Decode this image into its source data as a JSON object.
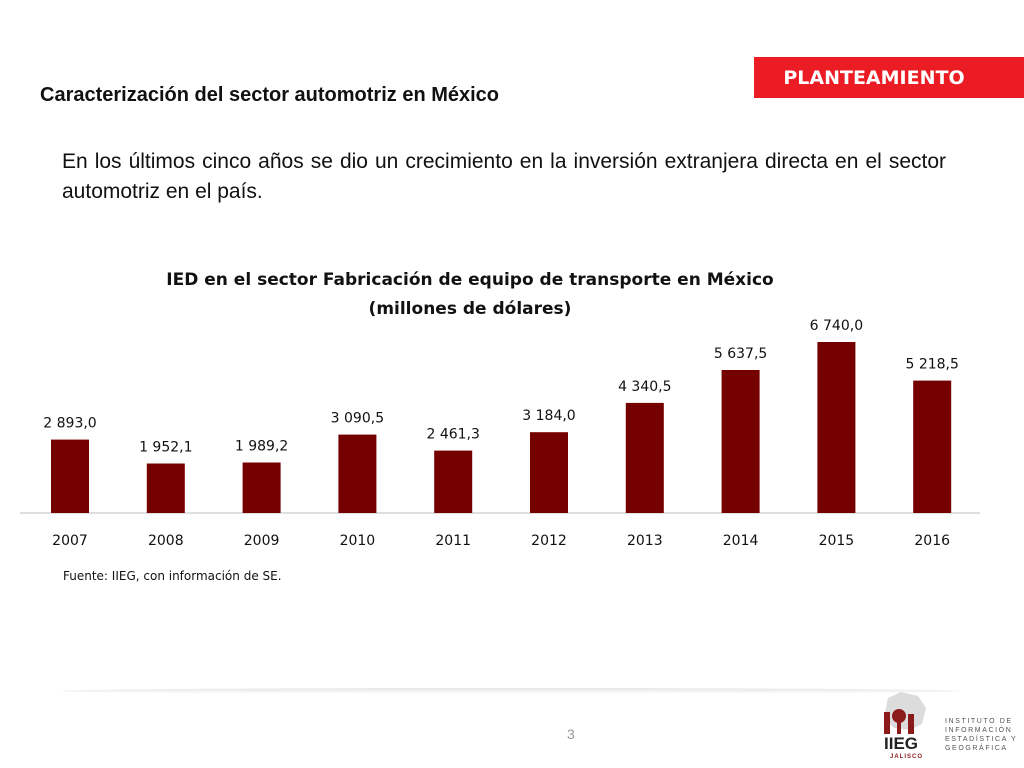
{
  "badge": "PLANTEAMIENTO",
  "heading": "Caracterización del sector automotriz en México",
  "intro": "En los últimos cinco años se dio un crecimiento en la inversión extranjera directa en el sector automotriz en el país.",
  "chart_data": {
    "type": "bar",
    "title": "IED en el sector Fabricación de equipo de transporte en México",
    "subtitle": "(millones de dólares)",
    "categories": [
      "2007",
      "2008",
      "2009",
      "2010",
      "2011",
      "2012",
      "2013",
      "2014",
      "2015",
      "2016"
    ],
    "values": [
      2893.0,
      1952.1,
      1989.2,
      3090.5,
      2461.3,
      3184.0,
      4340.5,
      5637.5,
      6740.0,
      5218.5
    ],
    "value_labels": [
      "2 893,0",
      "1 952,1",
      "1 989,2",
      "3 090,5",
      "2 461,3",
      "3 184,0",
      "4 340,5",
      "5 637,5",
      "6 740,0",
      "5 218,5"
    ],
    "xlabel": "",
    "ylabel": "",
    "ylim": [
      0,
      6740
    ],
    "grid": false,
    "legend": "none",
    "bar_color": "#750000"
  },
  "source": "Fuente: IIEG, con información de SE.",
  "page_number": "3",
  "logo": {
    "text": "IIEG",
    "subtext": "JALISCO",
    "caption_lines": [
      "INSTITUTO DE",
      "INFORMACIÓN",
      "ESTADÍSTICA Y",
      "GEOGRÁFICA"
    ]
  }
}
